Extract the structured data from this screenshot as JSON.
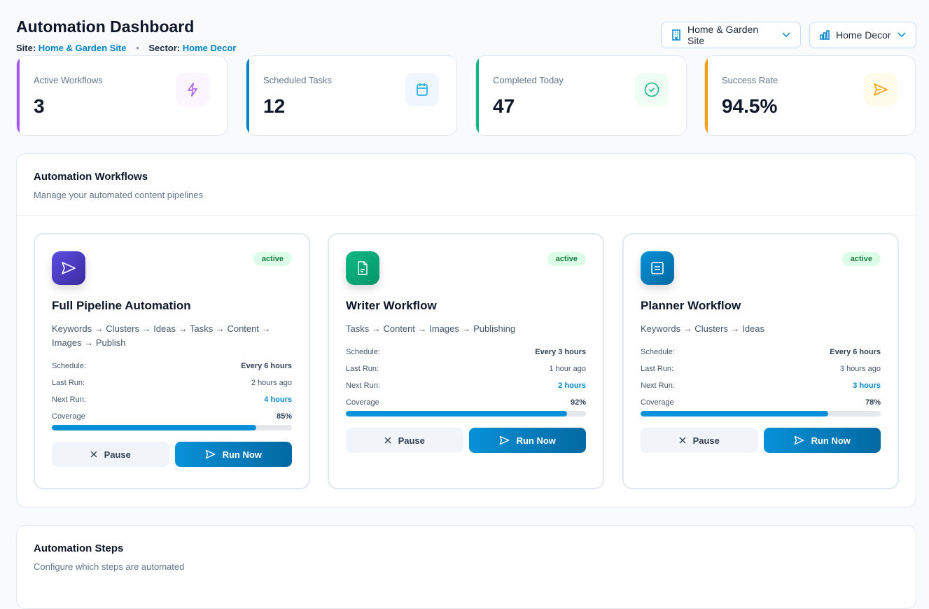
{
  "header": {
    "title": "Automation Dashboard",
    "site_label": "Site:",
    "site_value": "Home & Garden Site",
    "sector_label": "Sector:",
    "sector_value": "Home Decor",
    "dot": "•"
  },
  "selectors": [
    {
      "label": "Home & Garden Site",
      "icon": "building-icon"
    },
    {
      "label": "Home Decor",
      "icon": "bar-chart-icon"
    }
  ],
  "stats": [
    {
      "label": "Active Workflows",
      "value": "3",
      "accent": "#a855f7",
      "icon": "lightning-icon"
    },
    {
      "label": "Scheduled Tasks",
      "value": "12",
      "accent": "#0284c7",
      "icon": "calendar-icon"
    },
    {
      "label": "Completed Today",
      "value": "47",
      "accent": "#10b981",
      "icon": "check-circle-icon"
    },
    {
      "label": "Success Rate",
      "value": "94.5%",
      "accent": "#f59e0b",
      "icon": "send-icon"
    }
  ],
  "workflows_panel": {
    "title": "Automation Workflows",
    "subtitle": "Manage your automated content pipelines"
  },
  "workflows": [
    {
      "name": "Full Pipeline Automation",
      "status": "active",
      "pipeline": "Keywords → Clusters → Ideas → Tasks → Content → Images → Publish",
      "schedule_label": "Schedule:",
      "schedule": "Every 6 hours",
      "last_label": "Last Run:",
      "last_run": "2 hours ago",
      "next_label": "Next Run:",
      "next_run": "4 hours",
      "coverage_label": "Coverage",
      "coverage": "85%",
      "coverage_pct": 85,
      "pause": "Pause",
      "run": "Run Now",
      "icon": "send-icon"
    },
    {
      "name": "Writer Workflow",
      "status": "active",
      "pipeline": "Tasks → Content → Images → Publishing",
      "schedule_label": "Schedule:",
      "schedule": "Every 3 hours",
      "last_label": "Last Run:",
      "last_run": "1 hour ago",
      "next_label": "Next Run:",
      "next_run": "2 hours",
      "coverage_label": "Coverage",
      "coverage": "92%",
      "coverage_pct": 92,
      "pause": "Pause",
      "run": "Run Now",
      "icon": "document-icon"
    },
    {
      "name": "Planner Workflow",
      "status": "active",
      "pipeline": "Keywords → Clusters → Ideas",
      "schedule_label": "Schedule:",
      "schedule": "Every 6 hours",
      "last_label": "Last Run:",
      "last_run": "3 hours ago",
      "next_label": "Next Run:",
      "next_run": "3 hours",
      "coverage_label": "Coverage",
      "coverage": "78%",
      "coverage_pct": 78,
      "pause": "Pause",
      "run": "Run Now",
      "icon": "list-icon"
    }
  ],
  "steps_panel": {
    "title": "Automation Steps",
    "subtitle": "Configure which steps are automated"
  }
}
